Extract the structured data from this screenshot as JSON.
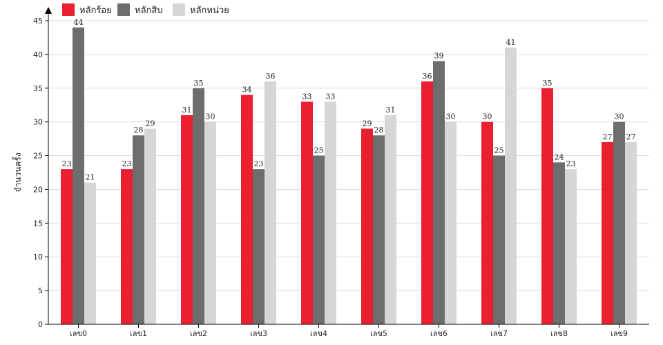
{
  "chart_data": {
    "type": "bar",
    "ylabel": "จำนวนครั้ง",
    "xlabel": "",
    "ylim": [
      0,
      45
    ],
    "yticks": [
      0,
      5,
      10,
      15,
      20,
      25,
      30,
      35,
      40,
      45
    ],
    "grid": true,
    "legend_position": "top-left",
    "categories": [
      "เลข0",
      "เลข1",
      "เลข2",
      "เลข3",
      "เลข4",
      "เลข5",
      "เลข6",
      "เลข7",
      "เลข8",
      "เลข9"
    ],
    "series": [
      {
        "name": "หลักร้อย",
        "color": "#e8202f",
        "values": [
          23,
          23,
          31,
          34,
          33,
          29,
          36,
          30,
          35,
          27
        ]
      },
      {
        "name": "หลักสิบ",
        "color": "#6d6d6d",
        "values": [
          44,
          28,
          35,
          23,
          25,
          28,
          39,
          25,
          24,
          30
        ]
      },
      {
        "name": "หลักหน่วย",
        "color": "#d6d6d6",
        "values": [
          21,
          29,
          30,
          36,
          33,
          31,
          30,
          41,
          23,
          27
        ]
      }
    ]
  }
}
